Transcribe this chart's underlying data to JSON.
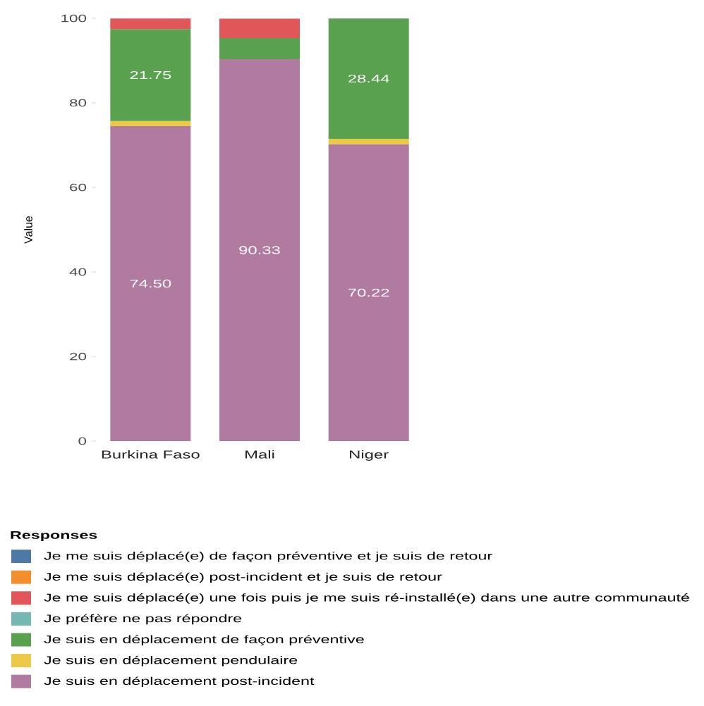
{
  "chart_data": {
    "type": "bar",
    "stacked": true,
    "ylabel": "Value",
    "legend_title": "Responses",
    "legend": "bottom",
    "categories": [
      "Burkina Faso",
      "Mali",
      "Niger"
    ],
    "ylim": [
      0,
      100
    ],
    "yticks": [
      0,
      20,
      40,
      60,
      80,
      100
    ],
    "series": [
      {
        "name": "Je suis en déplacement post-incident",
        "color": "#b07aa1",
        "values": [
          74.5,
          90.33,
          70.22
        ],
        "value_labels": [
          "74.50",
          "90.33",
          "70.22"
        ]
      },
      {
        "name": "Je suis en déplacement pendulaire",
        "color": "#edc948",
        "values": [
          1.2,
          null,
          1.3
        ]
      },
      {
        "name": "Je suis en déplacement de façon préventive",
        "color": "#59a14f",
        "values": [
          21.75,
          5.0,
          28.44
        ],
        "value_labels": [
          "21.75",
          null,
          "28.44"
        ]
      },
      {
        "name": "Je préfère ne pas répondre",
        "color": "#76b7b2",
        "values": [
          null,
          null,
          null
        ]
      },
      {
        "name": "Je me suis déplacé(e) une fois puis je me suis ré-installé(e) dans une autre communauté",
        "color": "#e15759",
        "values": [
          2.5,
          4.6,
          null
        ]
      },
      {
        "name": "Je me suis déplacé(e) post-incident et je suis de retour",
        "color": "#f28e2b",
        "values": [
          null,
          null,
          null
        ]
      },
      {
        "name": "Je me suis déplacé(e) de façon préventive et je suis de retour",
        "color": "#4e79a7",
        "values": [
          null,
          null,
          null
        ]
      }
    ]
  }
}
